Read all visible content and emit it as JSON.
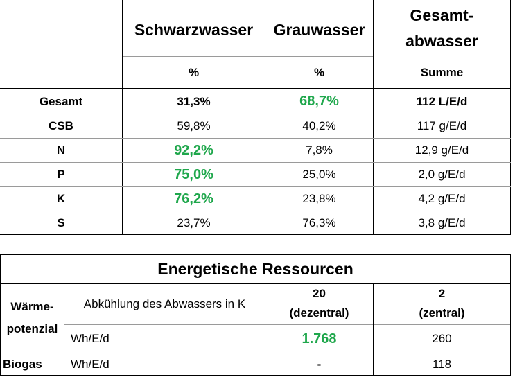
{
  "table1": {
    "headers": {
      "col1_title": "Schwarzwasser",
      "col2_title": "Grauwasser",
      "col3_title_line1": "Gesamt-",
      "col3_title_line2": "abwasser",
      "col1_unit": "%",
      "col2_unit": "%",
      "col3_unit": "Summe"
    },
    "rows": [
      {
        "label": "Gesamt",
        "schwarz": "31,3%",
        "grau": "68,7%",
        "summe": "112 L/E/d"
      },
      {
        "label": "CSB",
        "schwarz": "59,8%",
        "grau": "40,2%",
        "summe": "117 g/E/d"
      },
      {
        "label": "N",
        "schwarz": "92,2%",
        "grau": "7,8%",
        "summe": "12,9 g/E/d"
      },
      {
        "label": "P",
        "schwarz": "75,0%",
        "grau": "25,0%",
        "summe": "2,0 g/E/d"
      },
      {
        "label": "K",
        "schwarz": "76,2%",
        "grau": "23,8%",
        "summe": "4,2 g/E/d"
      },
      {
        "label": "S",
        "schwarz": "23,7%",
        "grau": "76,3%",
        "summe": "3,8 g/E/d"
      }
    ],
    "highlight_color": "#1fa74c"
  },
  "table2": {
    "title": "Energetische Ressourcen",
    "waerme_label_line1": "Wärme-",
    "waerme_label_line2": "potenzial",
    "abkuehlung_label": "Abkühlung des Abwassers in K",
    "col_dezentral_value": "20",
    "col_dezentral_label": "(dezentral)",
    "col_zentral_value": "2",
    "col_zentral_label": "(zentral)",
    "waerme_unit": "Wh/E/d",
    "waerme_dezentral": "1.768",
    "waerme_zentral": "260",
    "biogas_label": "Biogas",
    "biogas_unit": "Wh/E/d",
    "biogas_dezentral": "-",
    "biogas_zentral": "118"
  }
}
